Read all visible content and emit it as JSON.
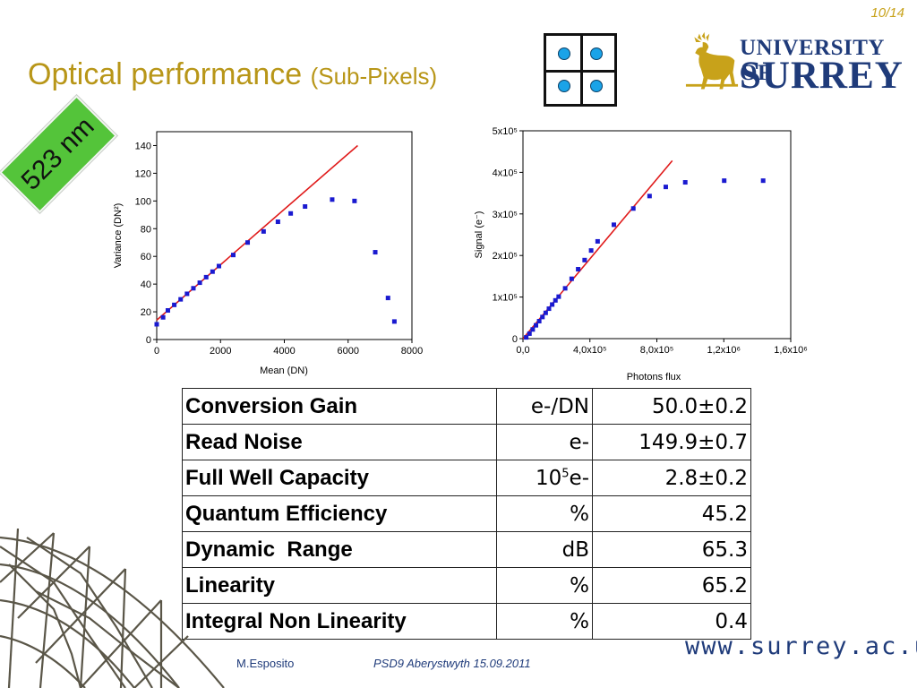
{
  "slide": {
    "page_number": "10/14",
    "title_main": "Optical performance",
    "title_sub": "(Sub-Pixels)",
    "wavelength_badge": "523 nm",
    "accent_color": "#b89618",
    "badge_color": "#54c43a"
  },
  "logo": {
    "line1": "UNIVERSITY OF",
    "line2": "SURREY",
    "brand_color": "#1f3b7a",
    "stag_color": "#c8a21a"
  },
  "chart_data": [
    {
      "type": "scatter",
      "xlabel": "Mean (DN)",
      "ylabel": "Variance (DN²)",
      "xlim": [
        0,
        8000
      ],
      "ylim": [
        0,
        150
      ],
      "x_ticks": [
        "0",
        "2000",
        "4000",
        "6000",
        "8000"
      ],
      "y_ticks": [
        "0",
        "20",
        "40",
        "60",
        "80",
        "100",
        "120",
        "140"
      ],
      "series": [
        {
          "points": [
            [
              0,
              11
            ],
            [
              200,
              16
            ],
            [
              350,
              21
            ],
            [
              550,
              25
            ],
            [
              750,
              29
            ],
            [
              950,
              33
            ],
            [
              1150,
              37
            ],
            [
              1350,
              41
            ],
            [
              1550,
              45
            ],
            [
              1750,
              49
            ],
            [
              1950,
              53
            ],
            [
              2400,
              61
            ],
            [
              2850,
              70
            ],
            [
              3350,
              78
            ],
            [
              3800,
              85
            ],
            [
              4200,
              91
            ],
            [
              4650,
              96
            ],
            [
              5500,
              101
            ],
            [
              6200,
              100
            ],
            [
              6850,
              63
            ],
            [
              7250,
              30
            ],
            [
              7450,
              13
            ]
          ],
          "color": "#1a1ad0"
        }
      ],
      "fit_line": {
        "x": [
          0,
          6300
        ],
        "y": [
          14,
          140
        ],
        "color": "#e01a1a"
      }
    },
    {
      "type": "scatter",
      "xlabel": "Photons flux",
      "ylabel": "Signal (e⁻)",
      "xlim": [
        0,
        1650000
      ],
      "ylim": [
        0,
        500000
      ],
      "x_ticks": [
        "0,0",
        "4,0x10⁵",
        "8,0x10⁵",
        "1,2x10⁶",
        "1,6x10⁶"
      ],
      "y_ticks": [
        "0",
        "1x10⁵",
        "2x10⁵",
        "3x10⁵",
        "4x10⁵",
        "5x10⁵"
      ],
      "series": [
        {
          "points": [
            [
              20000,
              3000
            ],
            [
              40000,
              12000
            ],
            [
              60000,
              22000
            ],
            [
              80000,
              32000
            ],
            [
              100000,
              42000
            ],
            [
              120000,
              52000
            ],
            [
              140000,
              62000
            ],
            [
              160000,
              72000
            ],
            [
              180000,
              82000
            ],
            [
              200000,
              92000
            ],
            [
              220000,
              101000
            ],
            [
              260000,
              121000
            ],
            [
              300000,
              144000
            ],
            [
              340000,
              167000
            ],
            [
              380000,
              189000
            ],
            [
              420000,
              212000
            ],
            [
              460000,
              234000
            ],
            [
              560000,
              274000
            ],
            [
              680000,
              313000
            ],
            [
              780000,
              343000
            ],
            [
              880000,
              365000
            ],
            [
              1000000,
              376000
            ],
            [
              1240000,
              380000
            ],
            [
              1480000,
              380000
            ]
          ],
          "color": "#1a1ad0"
        }
      ],
      "fit_line": {
        "x": [
          0,
          920000
        ],
        "y": [
          0,
          428000
        ],
        "color": "#e01a1a"
      }
    }
  ],
  "table": {
    "rows": [
      {
        "param": "Conversion Gain",
        "unit": "e-/DN",
        "value": "50.0±0.2"
      },
      {
        "param": "Read Noise",
        "unit": "e-",
        "value": "149.9±0.7"
      },
      {
        "param": "Full Well Capacity",
        "unit_base": "10",
        "unit_sup": "5",
        "unit_rest": "e-",
        "value": "2.8±0.2"
      },
      {
        "param": "Quantum Efficiency",
        "unit": "%",
        "value": "45.2"
      },
      {
        "param": "Dynamic  Range",
        "unit": "dB",
        "value": "65.3"
      },
      {
        "param": "Linearity",
        "unit": "%",
        "value": "65.2"
      },
      {
        "param": "Integral Non Linearity",
        "unit": "%",
        "value": "0.4"
      }
    ]
  },
  "footer": {
    "url": "www.surrey.ac.uk",
    "author": "M.Esposito",
    "event": "PSD9 Aberystwyth 15.09.2011"
  }
}
